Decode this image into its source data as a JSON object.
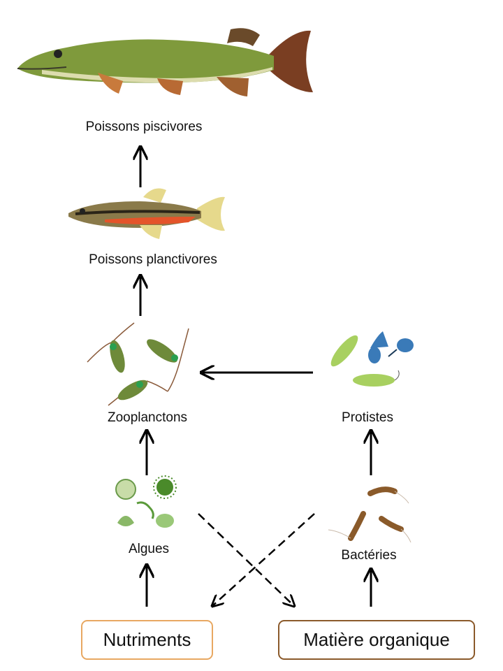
{
  "nodes": {
    "piscivores": "Poissons piscivores",
    "planctivores": "Poissons planctivores",
    "zooplanctons": "Zooplanctons",
    "protistes": "Protistes",
    "algues": "Algues",
    "bacteries": "Bactéries",
    "nutriments": "Nutriments",
    "matiere": "Matière organique"
  },
  "colors": {
    "nutriments_border": "#e8a862",
    "matiere_border": "#8b5a2b",
    "arrow": "#000000"
  },
  "edges": [
    {
      "from": "Poissons planctivores",
      "to": "Poissons piscivores",
      "style": "solid"
    },
    {
      "from": "Zooplanctons",
      "to": "Poissons planctivores",
      "style": "solid"
    },
    {
      "from": "Protistes",
      "to": "Zooplanctons",
      "style": "solid"
    },
    {
      "from": "Algues",
      "to": "Zooplanctons",
      "style": "solid"
    },
    {
      "from": "Bactéries",
      "to": "Protistes",
      "style": "solid"
    },
    {
      "from": "Nutriments",
      "to": "Algues",
      "style": "solid"
    },
    {
      "from": "Matière organique",
      "to": "Bactéries",
      "style": "solid"
    },
    {
      "from": "Algues",
      "to": "Matière organique",
      "style": "dashed"
    },
    {
      "from": "Bactéries",
      "to": "Nutriments",
      "style": "dashed"
    }
  ]
}
